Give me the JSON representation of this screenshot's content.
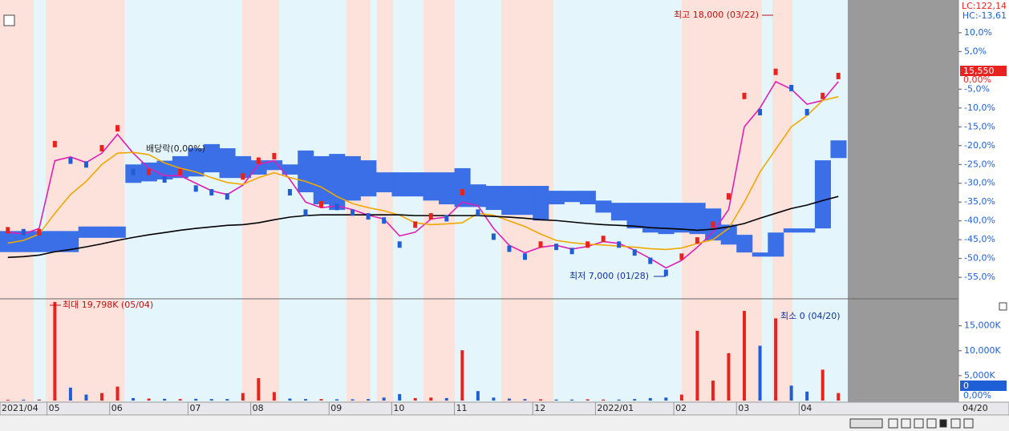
{
  "chart_data": [
    {
      "type": "line",
      "categories": [
        "2021/04",
        null,
        null,
        "05",
        null,
        null,
        null,
        "06",
        null,
        null,
        null,
        null,
        "07",
        null,
        null,
        null,
        "08",
        null,
        null,
        null,
        null,
        "09",
        null,
        null,
        null,
        "10",
        null,
        null,
        null,
        "11",
        null,
        null,
        null,
        null,
        "12",
        null,
        null,
        null,
        "2022/01",
        null,
        null,
        null,
        null,
        "02",
        null,
        null,
        null,
        "03",
        null,
        null,
        null,
        "04",
        null,
        null
      ],
      "close": [
        -42.5,
        -43,
        -43,
        -19.6,
        -24,
        -25,
        -20.7,
        -15.4,
        -27,
        -27,
        -29,
        -27,
        -31.4,
        -32.4,
        -33.5,
        -28.2,
        -24,
        -22.8,
        -32.4,
        -37.8,
        -35.6,
        -36.3,
        -37.8,
        -38.8,
        -39.9,
        -46.3,
        -41,
        -38.8,
        -39.3,
        -32.4,
        -37.8,
        -44.2,
        -47.4,
        -49.5,
        -46.3,
        -46.9,
        -48,
        -46.3,
        -44.8,
        -46.3,
        -48.4,
        -50.6,
        -53.8,
        -49.5,
        -45.2,
        -41,
        -33.5,
        -6.8,
        -11.1,
        -0.4,
        -4.7,
        -11.1,
        -6.8,
        -1.5
      ],
      "up_color": "#e8231f",
      "down_color": "#1f5fd6",
      "series": [
        {
          "color": "#e01fb3",
          "values": [
            -43,
            -43.5,
            -42,
            -24,
            -23,
            -24.5,
            -22,
            -17,
            -22,
            -26,
            -28,
            -28,
            -30,
            -32,
            -33,
            -30.5,
            -25,
            -24,
            -29,
            -35,
            -36.5,
            -36,
            -37,
            -38.5,
            -39.5,
            -44,
            -43,
            -39.5,
            -39,
            -35,
            -36,
            -42,
            -46.5,
            -48.5,
            -47,
            -46.5,
            -47.5,
            -46.8,
            -45.5,
            -46,
            -47.8,
            -50,
            -52.5,
            -50.5,
            -47,
            -43,
            -37,
            -15,
            -10,
            -3,
            -5,
            -9,
            -8,
            -3
          ]
        },
        {
          "color": "#f0a800",
          "values": [
            -45.9,
            -45.2,
            -43.5,
            -38,
            -33,
            -29.5,
            -25,
            -22,
            -21.8,
            -22.4,
            -24.6,
            -26,
            -27,
            -28.5,
            -29.8,
            -30.3,
            -28.5,
            -27.2,
            -28.5,
            -29.5,
            -31,
            -33.5,
            -35.4,
            -36.5,
            -37.3,
            -38.5,
            -40.5,
            -41,
            -40.8,
            -40.5,
            -38,
            -38.5,
            -40,
            -41.5,
            -43.5,
            -45.2,
            -45.8,
            -46.2,
            -46.4,
            -46.7,
            -47,
            -47.4,
            -47.6,
            -47.2,
            -46,
            -45,
            -42,
            -35,
            -27,
            -21,
            -15,
            -12,
            -8,
            -7
          ]
        },
        {
          "color": "#000000",
          "values": [
            -49.7,
            -49.5,
            -49.1,
            -48.2,
            -47.6,
            -46.9,
            -46.1,
            -45.2,
            -44.4,
            -43.7,
            -43.1,
            -42.5,
            -42,
            -41.6,
            -41.2,
            -41,
            -40.5,
            -39.7,
            -39,
            -38.6,
            -38.4,
            -38.4,
            -38.4,
            -38.4,
            -38.4,
            -38.4,
            -38.6,
            -38.6,
            -38.6,
            -38.6,
            -38.6,
            -38.8,
            -39,
            -39.3,
            -39.7,
            -39.9,
            -40.3,
            -40.7,
            -41,
            -41.2,
            -41.4,
            -41.8,
            -42,
            -42.2,
            -42.5,
            -42.2,
            -41.6,
            -40.7,
            -39.3,
            -38,
            -36.7,
            -35.8,
            -34.6,
            -33.5
          ]
        }
      ],
      "cloud_color": "#3a6fe8",
      "cloud_upper": [
        -42.7,
        -42.7,
        -42.7,
        -42.7,
        -42.7,
        -41.5,
        -41.5,
        -41.5,
        -25,
        -24.5,
        -24,
        -22.8,
        -20.7,
        -19.6,
        -20.7,
        -22.8,
        -23.9,
        -23.9,
        -25,
        -21.3,
        -22.8,
        -22.2,
        -22.8,
        -23.9,
        -27.1,
        -27.1,
        -27.1,
        -27.1,
        -27.1,
        -26,
        -30.3,
        -30.7,
        -30.7,
        -30.7,
        -30.7,
        -32,
        -32,
        -32,
        -34.6,
        -35.2,
        -35.2,
        -35.2,
        -35.2,
        -35.2,
        -35.2,
        -36.7,
        -41,
        -43.7,
        -48.4,
        -43.1,
        -42,
        -42,
        -23.9,
        -18.6
      ],
      "cloud_lower": [
        -48.3,
        -48.3,
        -48.3,
        -48.3,
        -48.3,
        -44.5,
        -44.5,
        -44.5,
        -29.9,
        -29.5,
        -29,
        -28.6,
        -28.2,
        -27.1,
        -28.6,
        -28.6,
        -27.7,
        -26.5,
        -27.7,
        -32.4,
        -35.6,
        -37.1,
        -34.6,
        -33.5,
        -32.4,
        -33.5,
        -33.5,
        -34.6,
        -35.6,
        -36.3,
        -36.3,
        -37.1,
        -38.4,
        -38.4,
        -39.9,
        -35.6,
        -35,
        -35.6,
        -37.8,
        -39.9,
        -42,
        -43.1,
        -43.5,
        -43.1,
        -43.5,
        -45.2,
        -46.3,
        -48.4,
        -49.5,
        -49.5,
        -43.1,
        -43.1,
        -42,
        -23.3
      ],
      "ylim": [
        -60.5,
        18.7
      ],
      "yticks": [
        {
          "value": 10,
          "label": "10,0%"
        },
        {
          "value": 5,
          "label": "5,0%"
        },
        {
          "value": -5,
          "label": "-5,0%"
        },
        {
          "value": -10,
          "label": "-10,0%"
        },
        {
          "value": -15,
          "label": "-15,0%"
        },
        {
          "value": -20,
          "label": "-20,0%"
        },
        {
          "value": -25,
          "label": "-25,0%"
        },
        {
          "value": -30,
          "label": "-30,0%"
        },
        {
          "value": -35,
          "label": "-35,0%"
        },
        {
          "value": -40,
          "label": "-40,0%"
        },
        {
          "value": -45,
          "label": "-45,0%"
        },
        {
          "value": -50,
          "label": "-50,0%"
        },
        {
          "value": -55,
          "label": "-55,0%"
        }
      ],
      "lc_label": "LC:122,14",
      "hc_label": "HC:-13,61",
      "base_price_label": "15,550",
      "base_pct_label": "0,00%",
      "annotations": [
        "최고 18,000 (03/22)",
        "최저 7,000 (01/28)",
        "배당락(0,00%)"
      ]
    },
    {
      "type": "bar",
      "values": [
        150,
        180,
        200,
        19798,
        2600,
        1200,
        1500,
        2800,
        500,
        400,
        350,
        300,
        350,
        300,
        300,
        1500,
        4500,
        1700,
        400,
        300,
        300,
        250,
        250,
        300,
        600,
        1300,
        500,
        600,
        500,
        10100,
        1900,
        600,
        400,
        300,
        250,
        200,
        200,
        250,
        200,
        200,
        300,
        500,
        600,
        1200,
        14000,
        4000,
        9500,
        18000,
        11000,
        16500,
        3000,
        1800,
        6200,
        1500
      ],
      "ylim": [
        0,
        20100
      ],
      "yticks": [
        {
          "value": 5000,
          "label": "5,000K"
        },
        {
          "value": 10000,
          "label": "10,000K"
        },
        {
          "value": 15000,
          "label": "15,000K"
        }
      ],
      "last_value_label": "0",
      "last_pct_label": "0,00%",
      "annotations": [
        "최대 19,798K (05/04)",
        "최소 0 (04/20)"
      ],
      "end_date_label": "04/20"
    }
  ]
}
